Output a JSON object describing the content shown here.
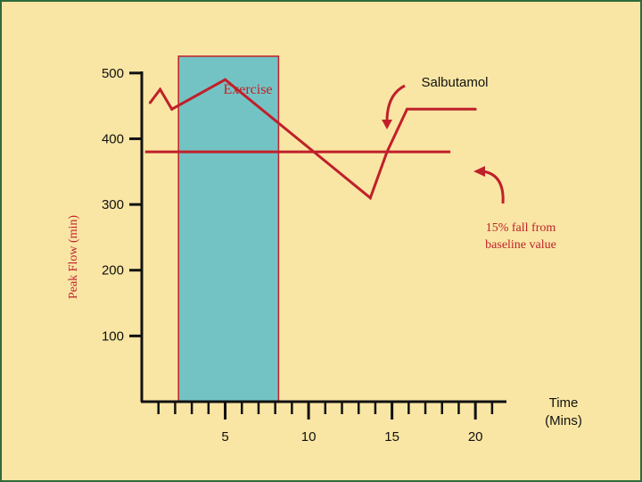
{
  "chart_data": {
    "type": "line",
    "title": "",
    "xlabel": "Time (Mins)",
    "ylabel": "Peak Flow (min)",
    "x_ticks": [
      5,
      10,
      15,
      20
    ],
    "y_ticks": [
      100,
      200,
      300,
      400,
      500
    ],
    "xlim": [
      0,
      24
    ],
    "ylim": [
      0,
      550
    ],
    "grid": false,
    "exercise_period": {
      "label": "Exercise",
      "start": 2.2,
      "end": 8.2
    },
    "series": [
      {
        "points": [
          {
            "x": 0.5,
            "y": 455
          },
          {
            "x": 1.1,
            "y": 475
          },
          {
            "x": 1.8,
            "y": 445
          },
          {
            "x": 5.0,
            "y": 490
          },
          {
            "x": 13.7,
            "y": 310
          },
          {
            "x": 14.7,
            "y": 380
          },
          {
            "x": 15.9,
            "y": 445
          },
          {
            "x": 20.0,
            "y": 445
          }
        ]
      }
    ],
    "reference_line": {
      "label": "15% fall from baseline value",
      "y": 380,
      "x_start": 0.2,
      "x_end": 18.5
    },
    "annotations": [
      {
        "text": "Salbutamol"
      },
      {
        "text": "15% fall from baseline value"
      }
    ],
    "colors": {
      "series": "#c0202a",
      "exercise_fill": "#74c3c4",
      "exercise_border": "#c0202a",
      "axis": "#111111",
      "background": "#f9e6a4"
    }
  }
}
